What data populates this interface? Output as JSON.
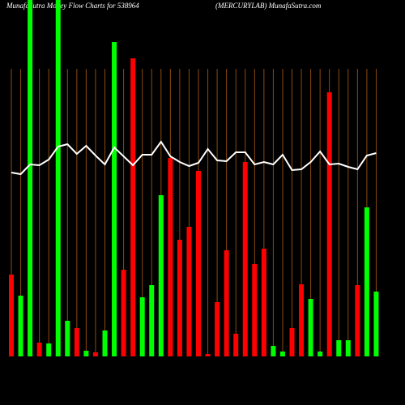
{
  "chart_data": {
    "type": "bar",
    "title": "MunafaSutra  Money Flow  Charts for 538964",
    "subtitle": "(MERCURYLAB) MunafaSutra.com",
    "categories": [
      null,
      null,
      null,
      null,
      null,
      null,
      null,
      null,
      null,
      null,
      null,
      null,
      null,
      null,
      null,
      null,
      null,
      null,
      null,
      null,
      null,
      null,
      null,
      null,
      null,
      null,
      null,
      null,
      null,
      null,
      null,
      null,
      null,
      null,
      null,
      null,
      null,
      null,
      null,
      null
    ],
    "values": [
      101,
      75,
      440,
      17,
      16,
      440,
      44,
      35,
      7,
      5,
      32,
      388,
      107,
      368,
      73,
      88,
      199,
      245,
      144,
      160,
      229,
      3,
      67,
      131,
      28,
      240,
      114,
      133,
      13,
      6,
      35,
      89,
      71,
      6,
      326,
      20,
      20,
      88,
      184,
      80
    ],
    "colors": [
      "#ff0000",
      "#00ff00",
      "#00ff00",
      "#ff0000",
      "#00ff00",
      "#00ff00",
      "#00ff00",
      "#ff0000",
      "#00ff00",
      "#ff0000",
      "#00ff00",
      "#00ff00",
      "#ff0000",
      "#ff0000",
      "#00ff00",
      "#00ff00",
      "#00ff00",
      "#ff0000",
      "#ff0000",
      "#ff0000",
      "#ff0000",
      "#ff0000",
      "#ff0000",
      "#ff0000",
      "#ff0000",
      "#ff0000",
      "#ff0000",
      "#ff0000",
      "#00ff00",
      "#00ff00",
      "#ff0000",
      "#ff0000",
      "#00ff00",
      "#00ff00",
      "#ff0000",
      "#00ff00",
      "#00ff00",
      "#ff0000",
      "#00ff00",
      "#00ff00"
    ],
    "line": {
      "color": "#ffffff",
      "values": [
        227,
        225,
        237,
        236,
        243,
        259,
        262,
        250,
        260,
        248,
        237,
        258,
        247,
        236,
        249,
        249,
        265,
        247,
        240,
        235,
        239,
        256,
        242,
        241,
        252,
        252,
        237,
        240,
        237,
        249,
        230,
        231,
        240,
        253,
        237,
        238,
        234,
        231,
        248,
        251
      ]
    },
    "ylim": [
      0,
      440
    ],
    "grid_color": "#8b4a10"
  }
}
